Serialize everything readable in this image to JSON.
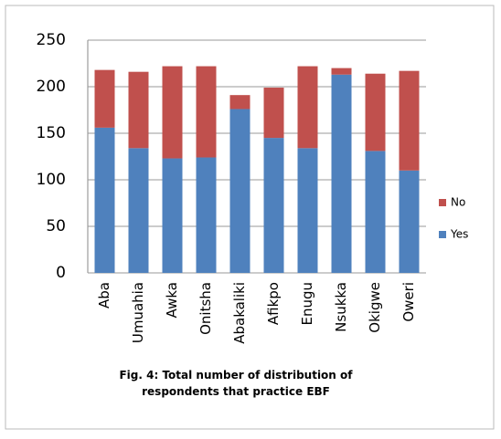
{
  "chart_data": {
    "type": "stacked_bar",
    "title": "Fig. 4: Total number of distribution of respondents that practice EBF",
    "categories": [
      "Aba",
      "Umuahia",
      "Awka",
      "Onitsha",
      "Abakaliki",
      "Afikpo",
      "Enugu",
      "Nsukka",
      "Okigwe",
      "Oweri"
    ],
    "series": [
      {
        "name": "Yes",
        "color": "#4f81bd",
        "values": [
          156,
          134,
          123,
          124,
          176,
          145,
          134,
          213,
          131,
          110
        ]
      },
      {
        "name": "No",
        "color": "#c0504d",
        "values": [
          62,
          82,
          99,
          98,
          15,
          54,
          88,
          7,
          83,
          107
        ]
      }
    ],
    "ylim": [
      0,
      250
    ],
    "yticks": [
      0,
      50,
      100,
      150,
      200,
      250
    ],
    "grid": true,
    "legend": "right"
  }
}
